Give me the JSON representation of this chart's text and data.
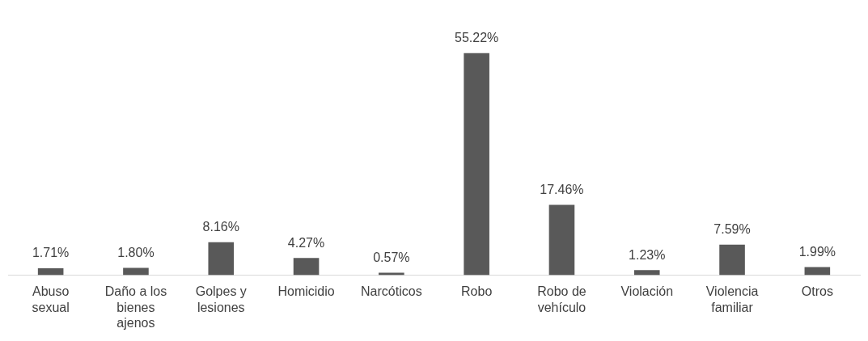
{
  "chart_data": {
    "type": "bar",
    "categories": [
      "Abuso sexual",
      "Daño a los bienes ajenos",
      "Golpes y lesiones",
      "Homicidio",
      "Narcóticos",
      "Robo",
      "Robo de vehículo",
      "Violación",
      "Violencia familiar",
      "Otros"
    ],
    "values": [
      1.71,
      1.8,
      8.16,
      4.27,
      0.57,
      55.22,
      17.46,
      1.23,
      7.59,
      1.99
    ],
    "value_labels": [
      "1.71%",
      "1.80%",
      "8.16%",
      "4.27%",
      "0.57%",
      "55.22%",
      "17.46%",
      "1.23%",
      "7.59%",
      "1.99%"
    ],
    "color": "#595959",
    "grid": false,
    "legend": false
  }
}
